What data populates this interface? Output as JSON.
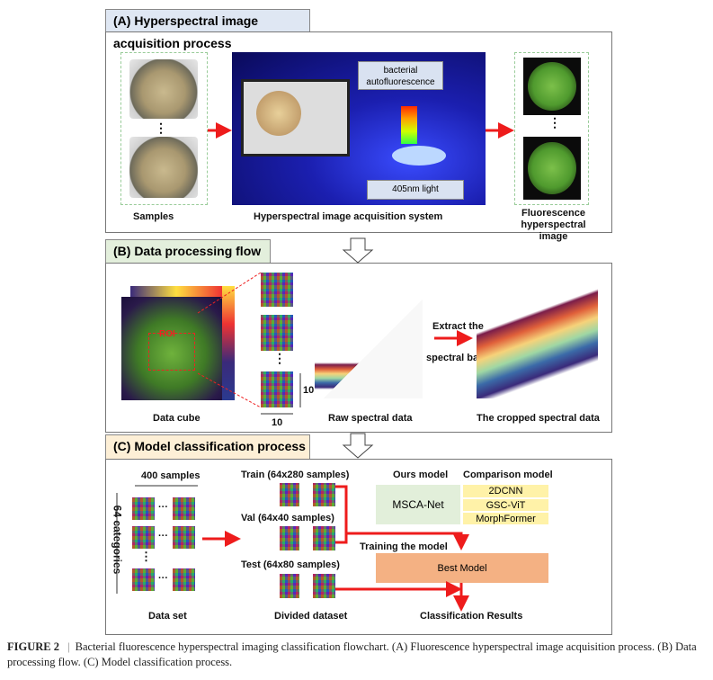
{
  "panel_a": {
    "title": "(A) Hyperspectral image acquisition process",
    "samples_label": "Samples",
    "system_label": "Hyperspectral image acquisition system",
    "fluor_label": "Fluorescence hyperspectral image",
    "autofluor_label": "bacterial autofluorescence",
    "light_label": "405nm light",
    "ellipsis": "⋮"
  },
  "panel_b": {
    "title": "(B) Data processing flow",
    "cube_label": "Data cube",
    "roi_label": "ROI",
    "raw_label": "Raw spectral data",
    "cropped_label": "The cropped spectral data",
    "extract_label_1": "Extract the",
    "extract_label_2": "spectral band",
    "dim_w": "10",
    "dim_h": "10",
    "ellipsis": "⋮"
  },
  "panel_c": {
    "title": "(C) Model classification process",
    "samples_label": "400 samples",
    "categories_label": "64 categories",
    "dataset_label": "Data set",
    "train_label": "Train (64x280 samples)",
    "val_label": "Val (64x40 samples)",
    "test_label": "Test (64x80 samples)",
    "divided_label": "Divided dataset",
    "ours_label": "Ours model",
    "comparison_label": "Comparison model",
    "ours_model": "MSCA-Net",
    "comparison_models": [
      "2DCNN",
      "GSC-ViT",
      "MorphFormer"
    ],
    "training_label": "Training the model",
    "best_model": "Best Model",
    "results_label": "Classification Results",
    "dots": "···",
    "vdots": "⋮"
  },
  "caption": {
    "figure": "FIGURE 2",
    "sep": "|",
    "text": "Bacterial fluorescence hyperspectral imaging classification flowchart. (A) Fluorescence hyperspectral image acquisition process. (B) Data processing flow. (C) Model classification process."
  },
  "colors": {
    "arrow": "#ee1c1c",
    "header_a": "#dfe7f3",
    "header_b": "#e3efdc",
    "header_c": "#fdefd6",
    "ours_box": "#e2efda",
    "comparison_box": "#fff2a8",
    "best_box": "#f4b183"
  }
}
